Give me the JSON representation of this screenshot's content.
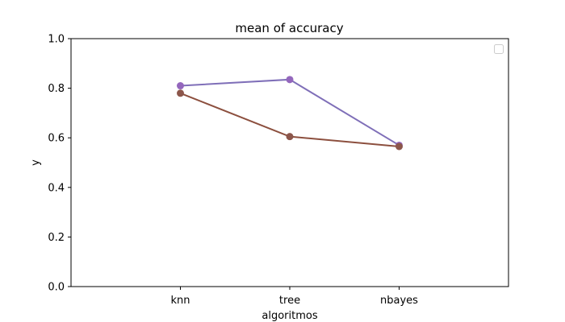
{
  "chart_data": {
    "type": "line",
    "title": "mean of accuracy",
    "xlabel": "algoritmos",
    "ylabel": "y",
    "categories": [
      "knn",
      "tree",
      "nbayes"
    ],
    "ylim": [
      0,
      1
    ],
    "yticks": [
      "0.0",
      "0.2",
      "0.4",
      "0.6",
      "0.8",
      "1.0"
    ],
    "grid": false,
    "legend": "top-right (empty box)",
    "series": [
      {
        "values": [
          0.81,
          0.835,
          0.57
        ],
        "color": "#7f6fb8",
        "marker_color": "#9467bd"
      },
      {
        "values": [
          0.78,
          0.605,
          0.565
        ],
        "color": "#8c4f3e",
        "marker_color": "#8c564b"
      }
    ]
  }
}
